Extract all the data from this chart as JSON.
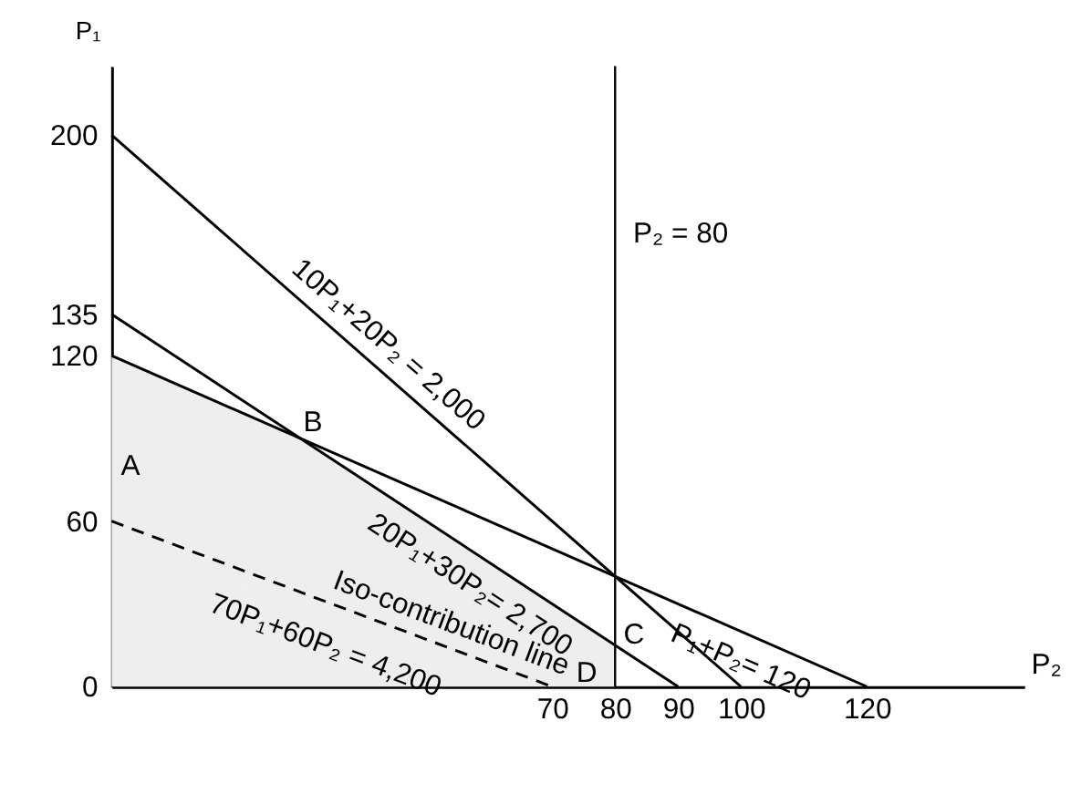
{
  "chart_data": {
    "type": "line",
    "xlabel": "P₂",
    "ylabel": "P₁",
    "xlim": [
      0,
      145
    ],
    "ylim": [
      0,
      225
    ],
    "xticks": [
      70,
      80,
      90,
      100,
      120
    ],
    "yticks": [
      0,
      60,
      120,
      135,
      200
    ],
    "grid": false,
    "series": [
      {
        "type": "area",
        "color": "#eeeeee",
        "x": [
          0,
          30,
          80
        ],
        "values": [
          120,
          90,
          15
        ]
      },
      {
        "color": "#000000",
        "x": [
          0,
          100
        ],
        "values": [
          200,
          0
        ]
      },
      {
        "color": "#000000",
        "x": [
          0,
          90
        ],
        "values": [
          135,
          0
        ]
      },
      {
        "color": "#000000",
        "x": [
          0,
          120
        ],
        "values": [
          120,
          0
        ]
      },
      {
        "color": "#000000",
        "x": [
          0,
          70
        ],
        "values": [
          60,
          0
        ],
        "line_style": "dashed"
      }
    ],
    "ref_lines": [
      {
        "axis": "x",
        "value": 80,
        "label": "P₂ = 80",
        "color": "#000000"
      }
    ],
    "annotations": [
      "10P₁+20P₂ = 2,000",
      "20P₁+30P₂= 2,700",
      "P₁+P₂= 120",
      "Iso-contribution line",
      "70P₁+60P₂ = 4,200",
      "A",
      "B",
      "C",
      "D"
    ]
  }
}
